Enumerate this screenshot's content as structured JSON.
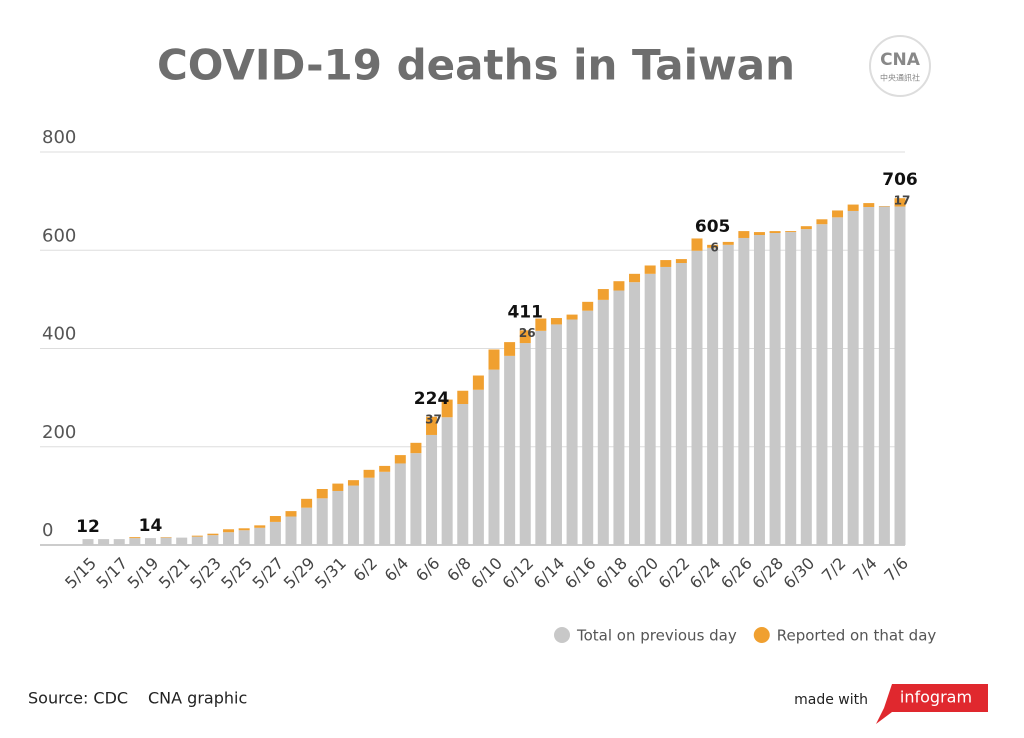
{
  "chart_data": {
    "type": "stacked_bar",
    "title": "COVID-19 deaths in Taiwan",
    "categories": [
      "5/15",
      null,
      "5/17",
      null,
      "5/19",
      null,
      "5/21",
      null,
      "5/23",
      null,
      "5/25",
      null,
      "5/27",
      null,
      "5/29",
      null,
      "5/31",
      null,
      "6/2",
      null,
      "6/4",
      null,
      "6/6",
      null,
      "6/8",
      null,
      "6/10",
      null,
      "6/12",
      null,
      "6/14",
      null,
      "6/16",
      null,
      "6/18",
      null,
      "6/20",
      null,
      "6/22",
      null,
      "6/24",
      null,
      "6/26",
      null,
      "6/28",
      null,
      "6/30",
      null,
      "7/2",
      null,
      "7/4",
      null,
      "7/6"
    ],
    "series": [
      {
        "name": "Total on previous day",
        "color": "#c8c8c8",
        "values": [
          12,
          12,
          12,
          14,
          14,
          15,
          15,
          17,
          20,
          26,
          30,
          35,
          47,
          58,
          76,
          95,
          110,
          121,
          137,
          149,
          166,
          187,
          224,
          260,
          287,
          316,
          357,
          385,
          411,
          436,
          449,
          459,
          477,
          499,
          518,
          535,
          552,
          566,
          574,
          599,
          605,
          611,
          625,
          631,
          635,
          637,
          643,
          653,
          667,
          680,
          688,
          689,
          689
        ]
      },
      {
        "name": "Reported on that day",
        "color": "#f0a030",
        "values": [
          0,
          0,
          0,
          2,
          0,
          1,
          0,
          2,
          3,
          6,
          4,
          5,
          12,
          11,
          18,
          19,
          15,
          11,
          16,
          12,
          17,
          21,
          37,
          36,
          27,
          29,
          41,
          28,
          26,
          25,
          13,
          10,
          18,
          22,
          19,
          17,
          17,
          14,
          8,
          25,
          6,
          6,
          14,
          6,
          4,
          2,
          6,
          10,
          14,
          13,
          8,
          1,
          17
        ]
      }
    ],
    "annotations": [
      {
        "category": "5/15",
        "value": 12
      },
      {
        "category": "5/19",
        "value": 14
      },
      {
        "category": "6/6",
        "value": 224
      },
      {
        "category": "6/12",
        "value": 411
      },
      {
        "category": "6/24",
        "value": 605
      },
      {
        "category": "7/6",
        "value": 706
      }
    ],
    "ylim": [
      0,
      800
    ],
    "yticks": [
      0,
      200,
      400,
      600,
      800
    ],
    "grid": true,
    "legend": "bottom-right",
    "source": "Source: CDC",
    "credit": "CNA graphic",
    "made_with": "made with",
    "tool": "infogram",
    "logo": "CNA",
    "logo_sub": "中央通訊社"
  }
}
